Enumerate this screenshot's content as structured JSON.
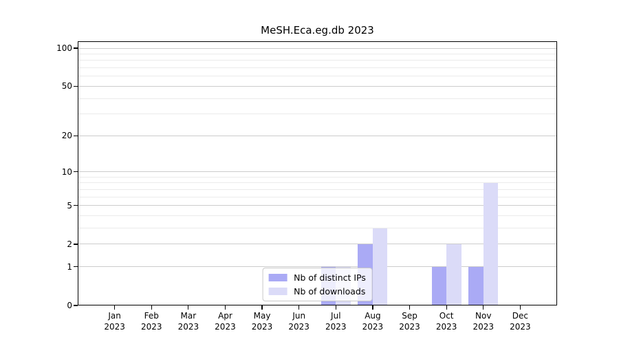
{
  "chart_data": {
    "type": "bar",
    "title": "MeSH.Eca.eg.db 2023",
    "categories": [
      "Jan",
      "Feb",
      "Mar",
      "Apr",
      "May",
      "Jun",
      "Jul",
      "Aug",
      "Sep",
      "Oct",
      "Nov",
      "Dec"
    ],
    "x_year_label": "2023",
    "series": [
      {
        "name": "Nb of distinct IPs",
        "color": "#aaaaf5",
        "values": [
          0,
          0,
          0,
          0,
          0,
          0,
          1,
          2,
          0,
          1,
          1,
          0
        ]
      },
      {
        "name": "Nb of downloads",
        "color": "#dbdbf8",
        "values": [
          0,
          0,
          0,
          0,
          0,
          0,
          1,
          3,
          0,
          2,
          8,
          0
        ]
      }
    ],
    "y_scale": "log1p",
    "y_major_ticks": [
      100,
      50,
      20,
      10,
      5,
      2,
      1,
      0
    ],
    "y_minor_gridlines": [
      3,
      4,
      6,
      7,
      8,
      9,
      30,
      40,
      60,
      70,
      80,
      90
    ],
    "ylim": [
      0,
      101
    ],
    "xlim": [
      -1,
      12
    ],
    "grid": true,
    "legend": {
      "position": "lower center",
      "items": [
        "Nb of distinct IPs",
        "Nb of downloads"
      ]
    }
  },
  "colors": {
    "bar_ips": "#aaaaf5",
    "bar_downloads": "#dbdbf8",
    "grid_major": "#cccccc",
    "grid_minor": "#ebebeb",
    "spine": "#000000",
    "legend_border": "#c8c8c8",
    "background": "#ffffff"
  }
}
